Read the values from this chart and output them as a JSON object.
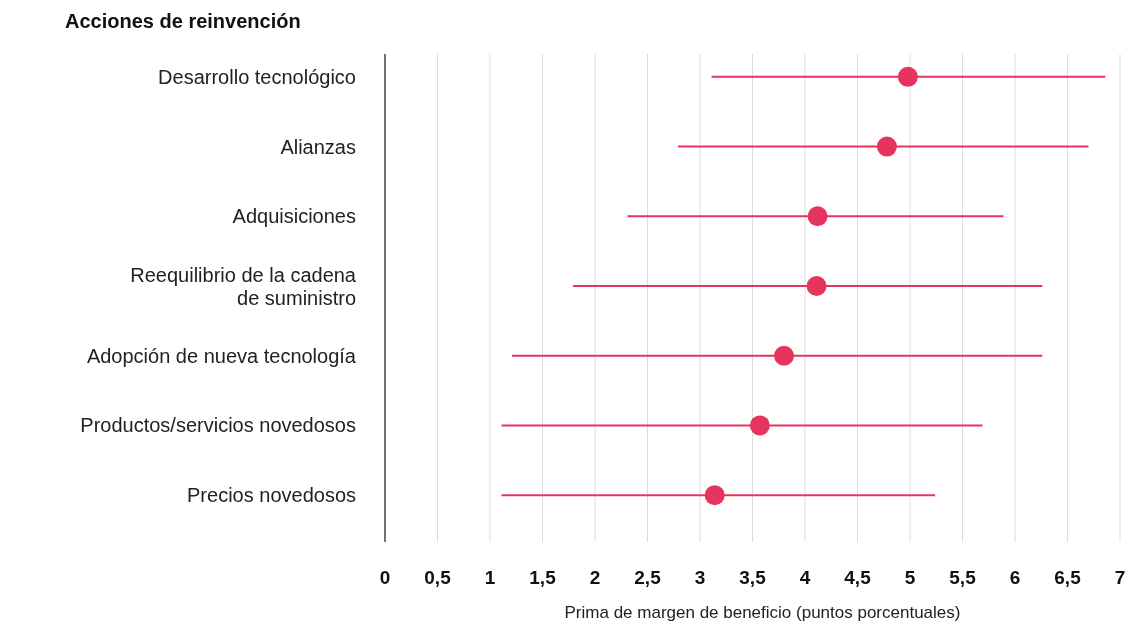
{
  "chart_data": {
    "type": "scatter",
    "orientation": "horizontal",
    "title": "Acciones de reinvención",
    "xlabel": "Prima de margen de beneficio (puntos porcentuales)",
    "categories": [
      "Desarrollo tecnológico",
      "Alianzas",
      "Adquisiciones",
      "Reequilibrio de la cadena\nde suministro",
      "Adopción de nueva tecnología",
      "Productos/servicios novedosos",
      "Precios novedosos"
    ],
    "values": [
      4.98,
      4.78,
      4.12,
      4.11,
      3.8,
      3.57,
      3.14
    ],
    "errors": [
      [
        3.11,
        6.86
      ],
      [
        2.79,
        6.7
      ],
      [
        2.31,
        5.89
      ],
      [
        1.79,
        6.26
      ],
      [
        1.21,
        6.26
      ],
      [
        1.11,
        5.69
      ],
      [
        1.11,
        5.24
      ]
    ],
    "color": "#e5355e",
    "marker": "circle",
    "grid": "x",
    "xlim": [
      0,
      7
    ],
    "xticks": [
      0,
      {
        "value": 0.5,
        "label": "0,5"
      },
      1,
      {
        "value": 1.5,
        "label": "1,5"
      },
      2,
      {
        "value": 2.5,
        "label": "2,5"
      },
      3,
      {
        "value": 3.5,
        "label": "3,5"
      },
      4,
      {
        "value": 4.5,
        "label": "4,5"
      },
      5,
      {
        "value": 5.5,
        "label": "5,5"
      },
      6,
      {
        "value": 6.5,
        "label": "6,5"
      },
      7
    ]
  }
}
